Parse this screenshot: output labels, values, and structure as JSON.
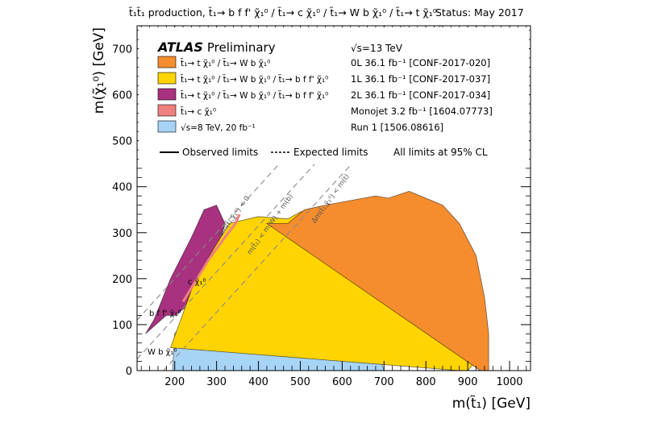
{
  "header": {
    "process": "t̃₁t̃₁ production, t̃₁→ b f f' χ̃₁⁰ / t̃₁→ c χ̃₁⁰ / t̃₁→ W b χ̃₁⁰ / t̃₁→ t χ̃₁⁰",
    "status": "Status: May 2017"
  },
  "chart_data": {
    "type": "area",
    "xlabel": "m(t̃₁) [GeV]",
    "ylabel": "m(χ̃₁⁰) [GeV]",
    "xlim": [
      110,
      1050
    ],
    "ylim": [
      0,
      750
    ],
    "xticks": [
      200,
      300,
      400,
      500,
      600,
      700,
      800,
      900,
      1000
    ],
    "yticks": [
      0,
      100,
      200,
      300,
      400,
      500,
      600,
      700
    ],
    "experiment": "ATLAS",
    "experiment_note": "Preliminary",
    "energy": "√s=13 TeV",
    "legend": [
      {
        "label": "t̃₁→ t χ̃₁⁰ / t̃₁→ W b χ̃₁⁰",
        "info": "0L 36.1 fb⁻¹ [CONF-2017-020]",
        "color": "#f58d2e"
      },
      {
        "label": "t̃₁→ t χ̃₁⁰ / t̃₁→ W b χ̃₁⁰ / t̃₁→ b f f' χ̃₁⁰",
        "info": "1L 36.1 fb⁻¹ [CONF-2017-037]",
        "color": "#ffd400"
      },
      {
        "label": "t̃₁→ t χ̃₁⁰ / t̃₁→ W b χ̃₁⁰ / t̃₁→ b f f' χ̃₁⁰",
        "info": "2L 36.1 fb⁻¹ [CONF-2017-034]",
        "color": "#a8327f"
      },
      {
        "label": "t̃₁→ c χ̃₁⁰",
        "info": "Monojet 3.2 fb⁻¹ [1604.07773]",
        "color": "#f08080"
      },
      {
        "label": "√s=8 TeV, 20 fb⁻¹",
        "info": "Run 1 [1506.08616]",
        "color": "#a7d3f5"
      }
    ],
    "line_legend": {
      "observed": "Observed limits",
      "expected": "Expected limits",
      "cl_note": "All limits at 95% CL"
    },
    "kinematic_labels": [
      "Δm(t̃₁,χ̃₁⁰) < 0",
      "m(t̃₁) < m(W) + m(b)",
      "Δm(t̃₁,χ̃₁⁰) < m(t)"
    ],
    "region_labels": [
      "c χ̃₁⁰",
      "b f f' χ̃₁⁰",
      "W b χ̃₁⁰"
    ],
    "series": [
      {
        "name": "Run 1 [1506.08616]",
        "x": [
          195,
          200,
          300,
          360,
          400,
          450,
          500,
          550,
          580,
          600,
          620,
          660,
          690,
          700,
          200
        ],
        "y": [
          0,
          80,
          200,
          250,
          280,
          295,
          305,
          310,
          312,
          300,
          250,
          120,
          30,
          0,
          0
        ]
      },
      {
        "name": "2L 36.1 fb⁻¹ [CONF-2017-034]",
        "x": [
          130,
          150,
          190,
          240,
          270,
          300,
          320,
          300,
          290,
          260,
          230,
          200,
          180
        ],
        "y": [
          80,
          110,
          200,
          290,
          350,
          360,
          320,
          250,
          200,
          150,
          140,
          120,
          120
        ]
      },
      {
        "name": "1L 36.1 fb⁻¹ [CONF-2017-037]",
        "x": [
          190,
          250,
          330,
          400,
          470,
          500,
          540,
          600,
          660,
          700,
          740,
          800,
          850,
          880,
          900,
          920,
          930,
          920,
          900,
          880
        ],
        "y": [
          50,
          200,
          320,
          335,
          330,
          345,
          355,
          365,
          360,
          340,
          350,
          345,
          330,
          310,
          270,
          150,
          80,
          20,
          0,
          0
        ]
      },
      {
        "name": "0L 36.1 fb⁻¹ [CONF-2017-020]",
        "x": [
          420,
          470,
          510,
          560,
          620,
          680,
          710,
          760,
          800,
          840,
          880,
          920,
          940,
          950,
          950,
          930
        ],
        "y": [
          320,
          320,
          350,
          360,
          370,
          380,
          375,
          390,
          375,
          360,
          320,
          250,
          160,
          80,
          0,
          0
        ]
      },
      {
        "name": "Monojet 3.2 fb⁻¹ [1604.07773]",
        "x": [
          220,
          280,
          320,
          345,
          355
        ],
        "y": [
          150,
          240,
          290,
          320,
          340
        ]
      }
    ]
  }
}
